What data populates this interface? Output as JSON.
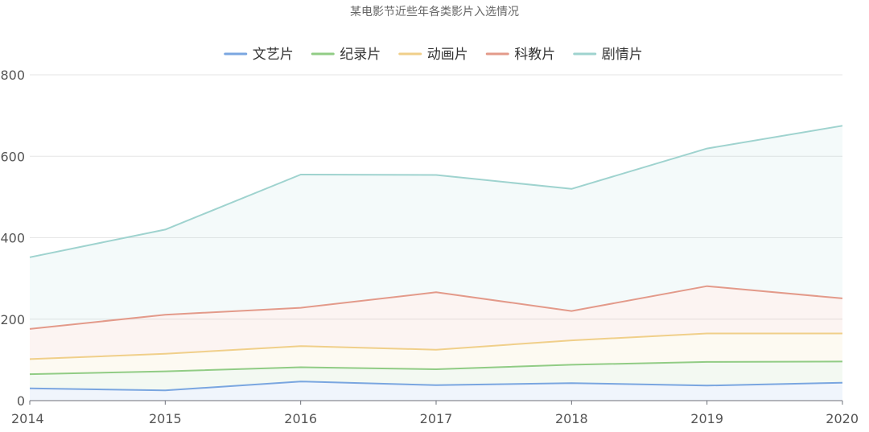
{
  "chart_data": {
    "type": "area",
    "title": "某电影节近些年各类影片入选情况",
    "categories": [
      "2014",
      "2015",
      "2016",
      "2017",
      "2018",
      "2019",
      "2020"
    ],
    "stacked": true,
    "ylim": [
      0,
      800
    ],
    "yticks": [
      "0",
      "200",
      "400",
      "600",
      "800"
    ],
    "grid": true,
    "legend_position": "top-center",
    "series": [
      {
        "name": "文艺片",
        "color": "#7aa6e0",
        "values": [
          30,
          25,
          47,
          38,
          43,
          37,
          44
        ]
      },
      {
        "name": "纪录片",
        "color": "#91cc85",
        "values": [
          35,
          47,
          35,
          39,
          45,
          58,
          52
        ]
      },
      {
        "name": "动画片",
        "color": "#f0cf8a",
        "values": [
          37,
          43,
          52,
          48,
          60,
          70,
          69
        ]
      },
      {
        "name": "科教片",
        "color": "#e39a8a",
        "values": [
          74,
          96,
          94,
          141,
          72,
          116,
          86
        ]
      },
      {
        "name": "剧情片",
        "color": "#9fd3cf",
        "values": [
          176,
          209,
          327,
          288,
          300,
          338,
          424
        ]
      }
    ]
  }
}
